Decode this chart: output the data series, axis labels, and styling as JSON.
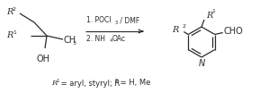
{
  "bg_color": "#ffffff",
  "line_color": "#2a2a2a",
  "text_color": "#2a2a2a",
  "figsize": [
    2.89,
    1.04
  ],
  "dpi": 100,
  "arrow_label1": "1. POCl",
  "arrow_label1_sub": "3",
  "arrow_label1_rest": " / DMF",
  "arrow_label2": "2. NH",
  "arrow_label2_sub": "4",
  "arrow_label2_rest": "OAc",
  "bottom_text_r1": "R",
  "bottom_text_r1_sup": "1",
  "bottom_text_mid": " = aryl, styryl; R",
  "bottom_text_r2_sup": "2",
  "bottom_text_end": " = H, Me"
}
